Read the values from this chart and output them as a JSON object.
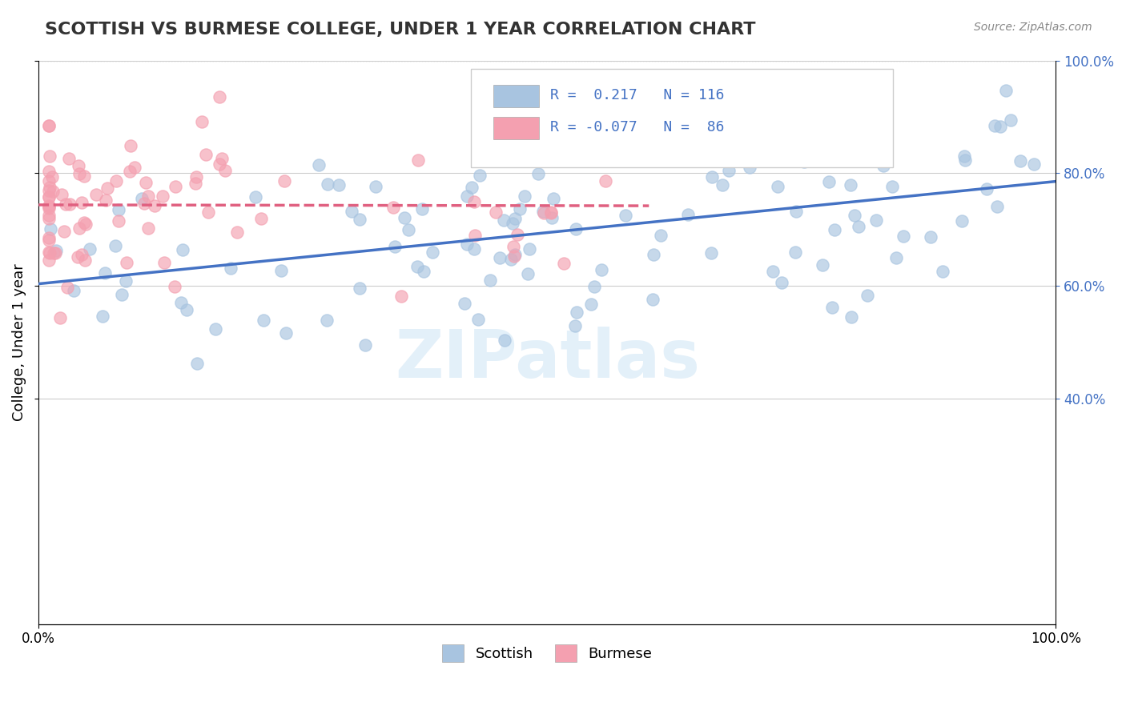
{
  "title": "SCOTTISH VS BURMESE COLLEGE, UNDER 1 YEAR CORRELATION CHART",
  "source_text": "Source: ZipAtlas.com",
  "ylabel_text": "College, Under 1 year",
  "xlim": [
    0.0,
    1.0
  ],
  "ylim": [
    0.0,
    1.0
  ],
  "scottish_color": "#a8c4e0",
  "burmese_color": "#f4a0b0",
  "scottish_line_color": "#4472c4",
  "burmese_line_color": "#e06080",
  "r_scottish": 0.217,
  "r_burmese": -0.077,
  "n_scottish": 116,
  "n_burmese": 86,
  "watermark": "ZIPatlas",
  "background_color": "#ffffff",
  "grid_color": "#cccccc",
  "title_fontsize": 16,
  "axis_label_fontsize": 13,
  "tick_fontsize": 12,
  "dot_size": 120,
  "dot_alpha": 0.65
}
